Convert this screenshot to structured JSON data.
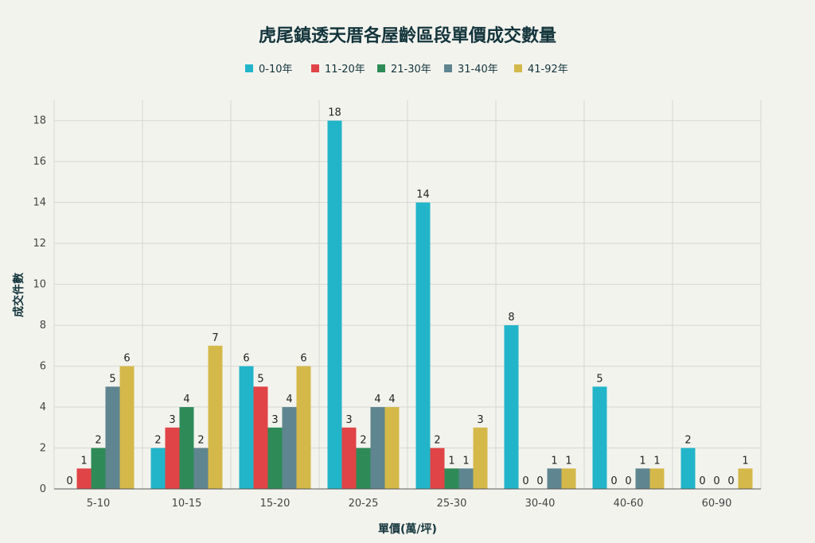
{
  "chart_data": {
    "type": "bar",
    "title": "虎尾鎮透天厝各屋齡區段單價成交數量",
    "xlabel": "單價(萬/坪)",
    "ylabel": "成交件數",
    "categories": [
      "5-10",
      "10-15",
      "15-20",
      "20-25",
      "25-30",
      "30-40",
      "40-60",
      "60-90"
    ],
    "ylim": [
      0,
      19
    ],
    "yticks": [
      0,
      2,
      4,
      6,
      8,
      10,
      12,
      14,
      16,
      18
    ],
    "grid": true,
    "legend_position": "top",
    "series": [
      {
        "name": "0-10年",
        "color": "#22b5c9",
        "values": [
          0,
          2,
          6,
          18,
          14,
          8,
          5,
          2
        ]
      },
      {
        "name": "11-20年",
        "color": "#e04446",
        "values": [
          1,
          3,
          5,
          3,
          2,
          0,
          0,
          0
        ]
      },
      {
        "name": "21-30年",
        "color": "#2e8b57",
        "values": [
          2,
          4,
          3,
          2,
          1,
          0,
          0,
          0
        ]
      },
      {
        "name": "31-40年",
        "color": "#5f8590",
        "values": [
          5,
          2,
          4,
          4,
          1,
          1,
          1,
          0
        ]
      },
      {
        "name": "41-92年",
        "color": "#d4b94a",
        "values": [
          6,
          7,
          6,
          4,
          3,
          1,
          1,
          1
        ]
      }
    ]
  }
}
